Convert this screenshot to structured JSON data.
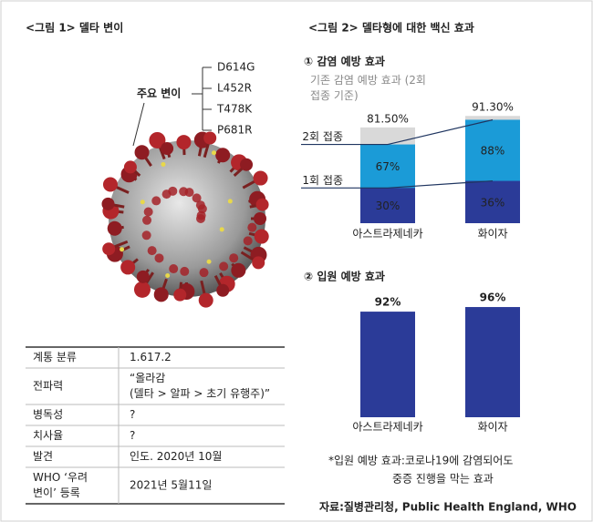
{
  "figure1": {
    "title": "<그림 1> 델타 변이",
    "key_label": "주요 변이",
    "mutations": [
      "D614G",
      "L452R",
      "T478K",
      "P681R"
    ],
    "table": {
      "rows": [
        [
          [
            "계통 분류"
          ],
          [
            "1.617.2"
          ]
        ],
        [
          [
            "전파력"
          ],
          [
            "“올라감",
            "(델타 > 알파 > 초기 유행주)”"
          ]
        ],
        [
          [
            "병독성"
          ],
          [
            "?"
          ]
        ],
        [
          [
            "치사율"
          ],
          [
            "?"
          ]
        ],
        [
          [
            "발견"
          ],
          [
            "인도. 2020년 10월"
          ]
        ],
        [
          [
            "WHO ‘우려",
            "변이’ 등록"
          ],
          [
            "2021년 5월11일"
          ]
        ]
      ]
    }
  },
  "figure2": {
    "title": "<그림 2> 델타형에 대한 백신 효과"
  },
  "chart_data": [
    {
      "type": "bar",
      "title": "① 감염 예방 효과",
      "categories": [
        "아스트라제네카",
        "화이자"
      ],
      "ylim": [
        0,
        100
      ],
      "series": [
        {
          "name": "기존 감염 예방 효과 (2회 접종 기준)",
          "color": "#d9d9d9",
          "values": [
            81.5,
            91.3
          ],
          "value_labels": [
            "81.50%",
            "91.30%"
          ]
        },
        {
          "name": "2회 접종",
          "color": "#1b9bd7",
          "values": [
            67,
            88
          ],
          "value_labels": [
            "67%",
            "88%"
          ]
        },
        {
          "name": "1회 접종",
          "color": "#2b3b98",
          "values": [
            30,
            36
          ],
          "value_labels": [
            "30%",
            "36%"
          ]
        }
      ]
    },
    {
      "type": "bar",
      "title": "② 입원 예방 효과",
      "categories": [
        "아스트라제네카",
        "화이자"
      ],
      "ylim": [
        0,
        100
      ],
      "values": [
        92,
        96
      ],
      "value_labels": [
        "92%",
        "96%"
      ],
      "color": "#2b3b98"
    }
  ],
  "footnote": [
    "*입원 예방 효과:코로나19에 감염되어도",
    "중증 진행을 막는 효과"
  ],
  "source": "자료:질병관리청, Public Health England, WHO"
}
